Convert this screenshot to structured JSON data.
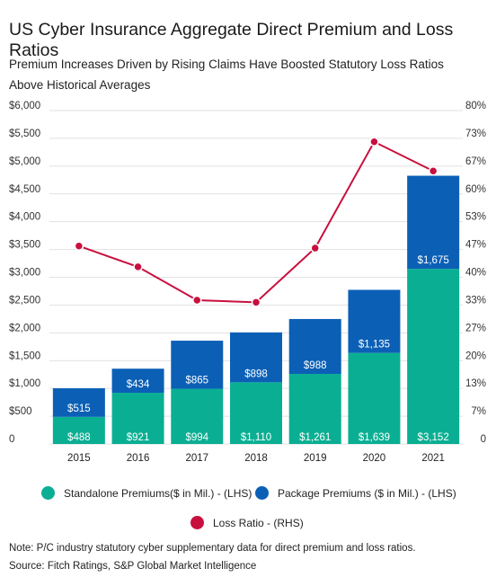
{
  "title": "US Cyber Insurance Aggregate Direct Premium and Loss Ratios",
  "subtitle": "Premium Increases Driven by Rising Claims Have Boosted Statutory Loss Ratios Above Historical Averages",
  "note": "Note: P/C industry statutory cyber supplementary data for direct premium and loss ratios.",
  "source": "Source: Fitch Ratings, S&P Global Market Intelligence",
  "colors": {
    "standalone": "#0aaf93",
    "package": "#0b60b6",
    "loss": "#c8103e"
  },
  "legend": {
    "standalone": "Standalone Premiums($ in Mil.) - (LHS)",
    "package": "Package Premiums ($ in Mil.) - (LHS)",
    "loss": "Loss Ratio - (RHS)"
  },
  "chart_data": {
    "type": "bar",
    "stacked": true,
    "categories": [
      "2015",
      "2016",
      "2017",
      "2018",
      "2019",
      "2020",
      "2021"
    ],
    "series": [
      {
        "name": "Standalone Premiums($ in Mil.) - (LHS)",
        "values": [
          488,
          921,
          994,
          1110,
          1261,
          1639,
          3152
        ],
        "labels": [
          "$488",
          "$921",
          "$994",
          "$1,110",
          "$1,261",
          "$1,639",
          "$3,152"
        ]
      },
      {
        "name": "Package Premiums ($ in Mil.) - (LHS)",
        "values": [
          515,
          434,
          865,
          898,
          988,
          1135,
          1675
        ],
        "labels": [
          "$515",
          "$434",
          "$865",
          "$898",
          "$988",
          "$1,135",
          "$1,675"
        ]
      },
      {
        "name": "Loss Ratio - (RHS)",
        "type": "line",
        "axis": "right",
        "values": [
          47.5,
          42.5,
          34.5,
          34,
          47,
          72.5,
          65.5
        ]
      }
    ],
    "y_left": {
      "ylim": [
        0,
        6000
      ],
      "ticks": [
        "0",
        "$500",
        "$1,000",
        "$1,500",
        "$2,000",
        "$2,500",
        "$3,000",
        "$3,500",
        "$4,000",
        "$4,500",
        "$5,000",
        "$5,500",
        "$6,000"
      ]
    },
    "y_right": {
      "ylim": [
        0,
        80
      ],
      "ticks": [
        "0",
        "7%",
        "13%",
        "20%",
        "27%",
        "33%",
        "40%",
        "47%",
        "53%",
        "60%",
        "67%",
        "73%",
        "80%"
      ]
    },
    "grid": true,
    "legend_position": "bottom"
  }
}
